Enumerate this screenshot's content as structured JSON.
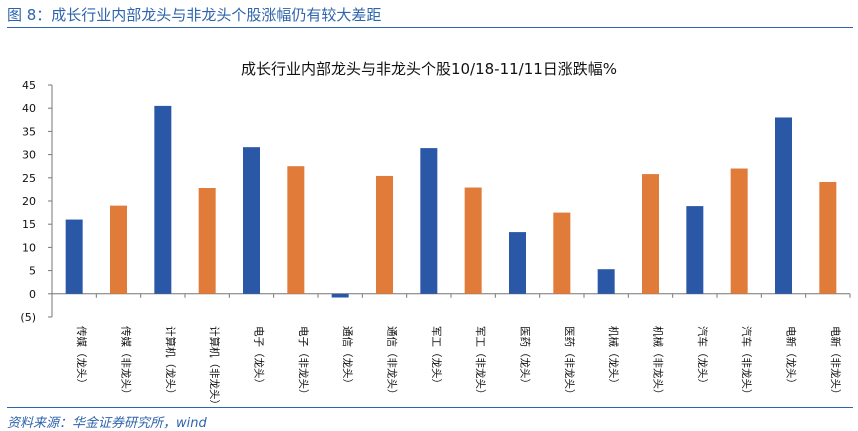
{
  "figure": {
    "title": "图 8：成长行业内部龙头与非龙头个股涨幅仍有较大差距",
    "source": "资料来源：华金证券研究所，wind"
  },
  "colors": {
    "leader": "#2a58a6",
    "non_leader": "#e07b39",
    "accent": "#2e63ad"
  },
  "chart_data": {
    "type": "bar",
    "title": "成长行业内部龙头与非龙头个股10/18-11/11日涨跌幅%",
    "xlabel": "",
    "ylabel": "",
    "ylim": [
      -5,
      45
    ],
    "yticks": [
      -5,
      0,
      5,
      10,
      15,
      20,
      25,
      30,
      35,
      40,
      45
    ],
    "ytick_labels": [
      "(5)",
      "0",
      "5",
      "10",
      "15",
      "20",
      "25",
      "30",
      "35",
      "40",
      "45"
    ],
    "grid": false,
    "legend": "none",
    "categories": [
      "传媒（龙头）",
      "传媒（非龙头）",
      "计算机（龙头）",
      "计算机（非龙头）",
      "电子（龙头）",
      "电子（非龙头）",
      "通信（龙头）",
      "通信（非龙头）",
      "军工（龙头）",
      "军工（非龙头）",
      "医药（龙头）",
      "医药（非龙头）",
      "机械（龙头）",
      "机械（非龙头）",
      "汽车（龙头）",
      "汽车（非龙头）",
      "电新（龙头）",
      "电新（非龙头）"
    ],
    "values": [
      16.0,
      19.0,
      40.5,
      22.8,
      31.6,
      27.5,
      -0.8,
      25.4,
      31.4,
      22.9,
      13.3,
      17.5,
      5.3,
      25.8,
      18.9,
      27.0,
      38.0,
      24.1
    ]
  }
}
